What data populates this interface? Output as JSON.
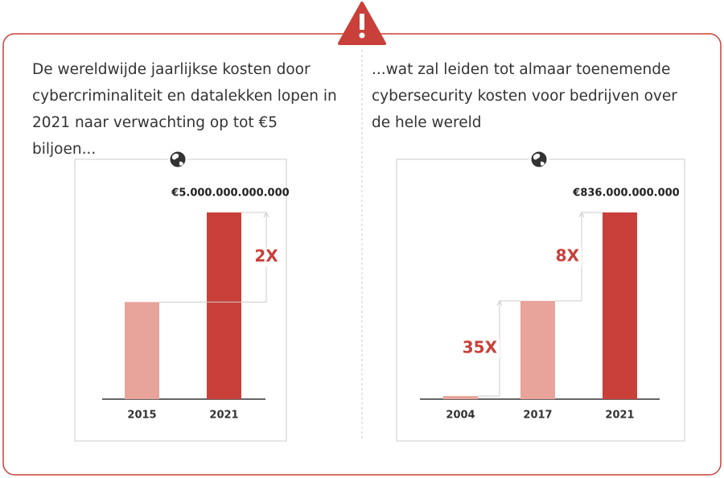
{
  "chart_data": [
    {
      "type": "bar",
      "subtitle": "De wereldwijde jaarlijkse kosten door cybercriminaliteit en datalekken lopen in 2021 naar verwachting op tot €5 biljoen...",
      "categories": [
        "2015",
        "2021"
      ],
      "values": [
        2600000000000,
        5000000000000
      ],
      "value_labels": [
        null,
        "€5.000.000.000.000"
      ],
      "colors": [
        "#e8a39a",
        "#c9403a"
      ],
      "annotations": [
        "2X"
      ]
    },
    {
      "type": "bar",
      "subtitle": "...wat zal leiden tot almaar toenemende cybersecurity kosten voor bedrijven over de hele wereld",
      "categories": [
        "2004",
        "2017",
        "2021"
      ],
      "values": [
        14000000000,
        440000000000,
        836000000000
      ],
      "value_labels": [
        null,
        null,
        "€836.000.000.000"
      ],
      "colors": [
        "#e8a39a",
        "#e8a39a",
        "#c9403a"
      ],
      "annotations": [
        "35X",
        "8X"
      ]
    }
  ]
}
